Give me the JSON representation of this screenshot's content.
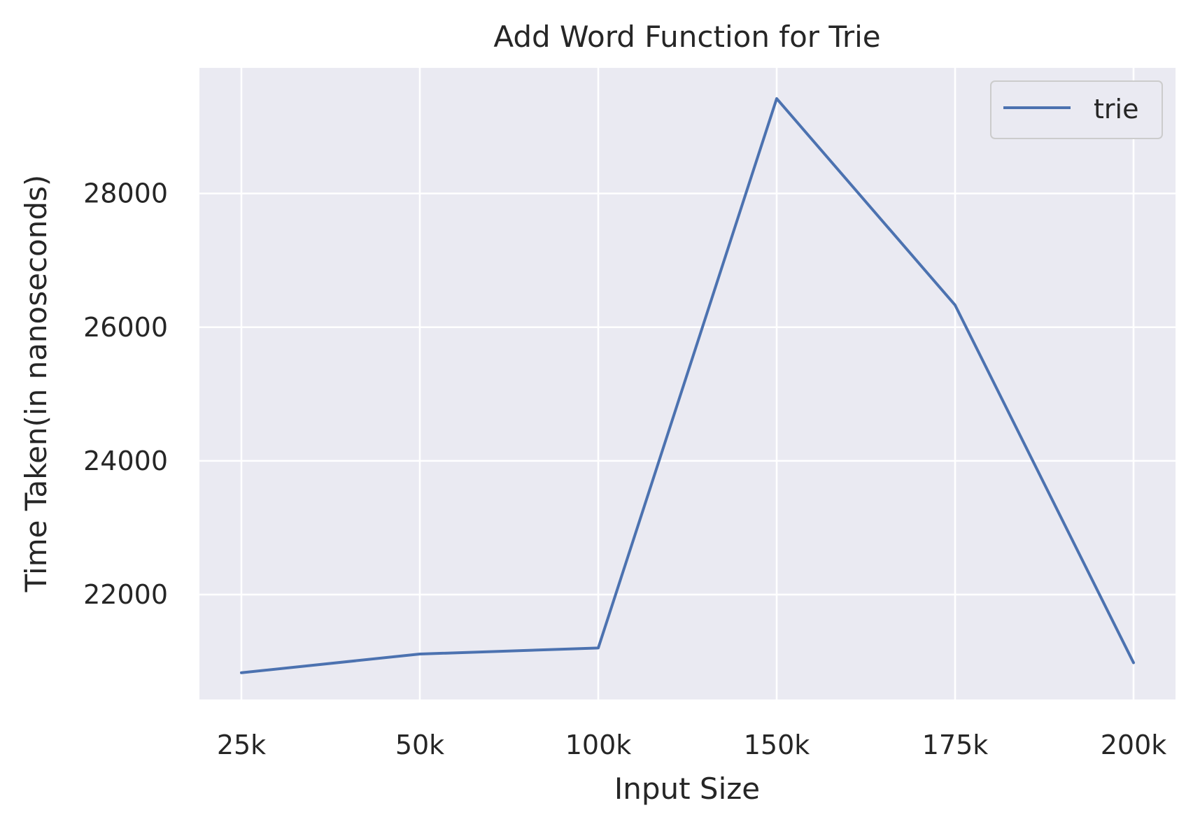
{
  "chart_data": {
    "type": "line",
    "title": "Add Word Function for Trie",
    "xlabel": "Input Size",
    "ylabel": "Time Taken(in nanoseconds)",
    "categories": [
      "25k",
      "50k",
      "100k",
      "150k",
      "175k",
      "200k"
    ],
    "series": [
      {
        "name": "trie",
        "color": "#4c72b0",
        "values": [
          20830,
          21110,
          21200,
          29420,
          26330,
          20980
        ]
      }
    ],
    "yticks": [
      22000,
      24000,
      26000,
      28000
    ],
    "ylim": [
      20430,
      29880
    ],
    "grid": true,
    "legend_position": "top-right",
    "background_color": "#eaeaf2",
    "grid_color": "#ffffff"
  }
}
